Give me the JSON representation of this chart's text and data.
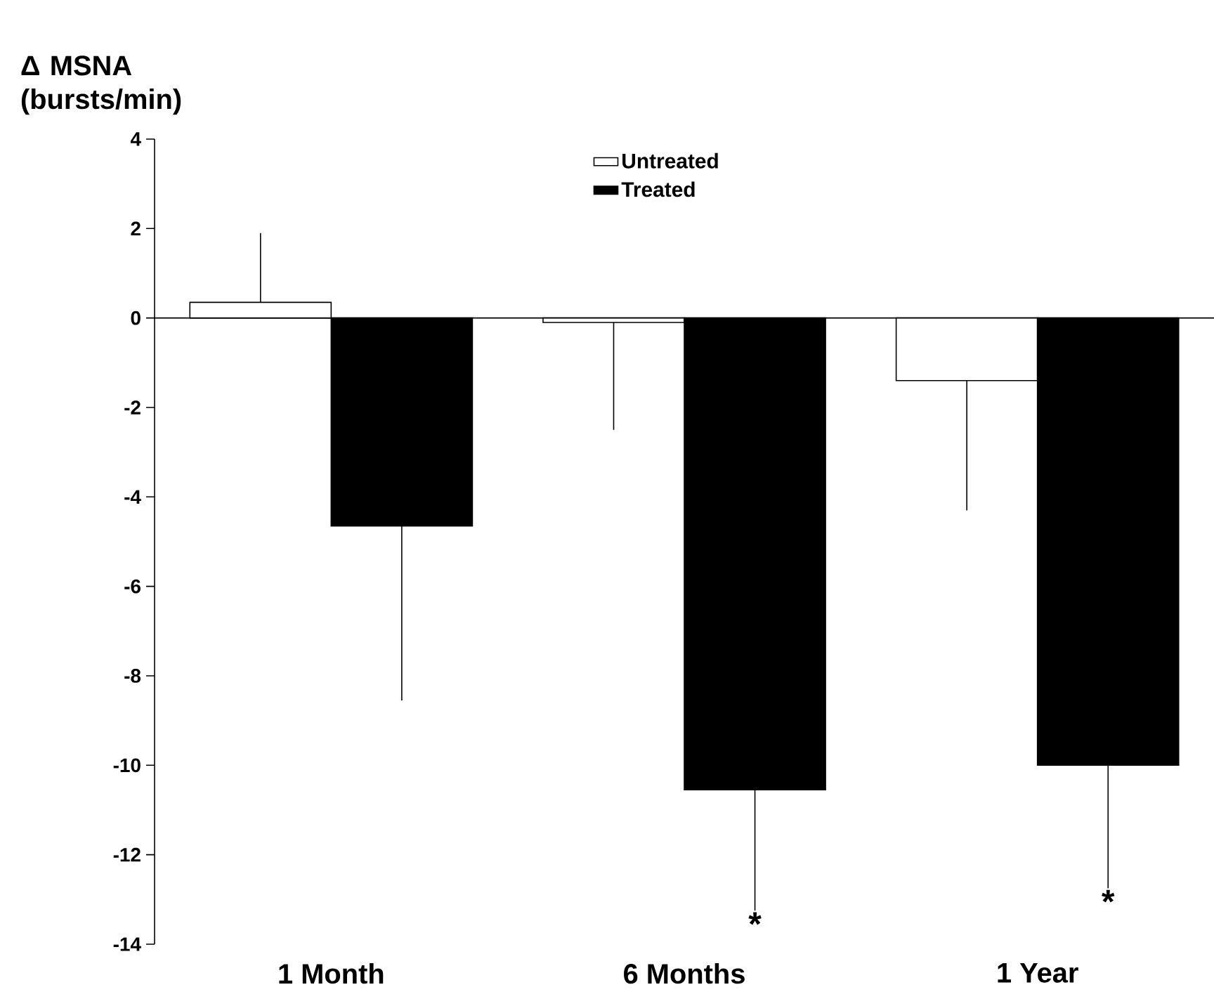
{
  "chart_data": {
    "type": "bar",
    "ylabel": "Δ MSNA (bursts/min)",
    "categories": [
      "1 Month",
      "6 Months",
      "1 Year"
    ],
    "series": [
      {
        "name": "Untreated",
        "color": "#ffffff",
        "values": [
          0.35,
          -0.1,
          -1.4
        ],
        "errors": [
          [
            0.35,
            1.9
          ],
          [
            -2.5,
            -0.1
          ],
          [
            -4.3,
            -1.4
          ]
        ]
      },
      {
        "name": "Treated",
        "color": "#000000",
        "values": [
          -4.65,
          -10.55,
          -10.0
        ],
        "errors": [
          [
            -8.55,
            -4.65
          ],
          [
            -13.25,
            -10.55
          ],
          [
            -12.75,
            -10.0
          ]
        ]
      }
    ],
    "ylim": [
      -14,
      4
    ],
    "yticks": [
      -14,
      -12,
      -10,
      -8,
      -6,
      -4,
      -2,
      0,
      2,
      4
    ],
    "legend": "top",
    "annotations": [
      "*",
      "*"
    ]
  }
}
